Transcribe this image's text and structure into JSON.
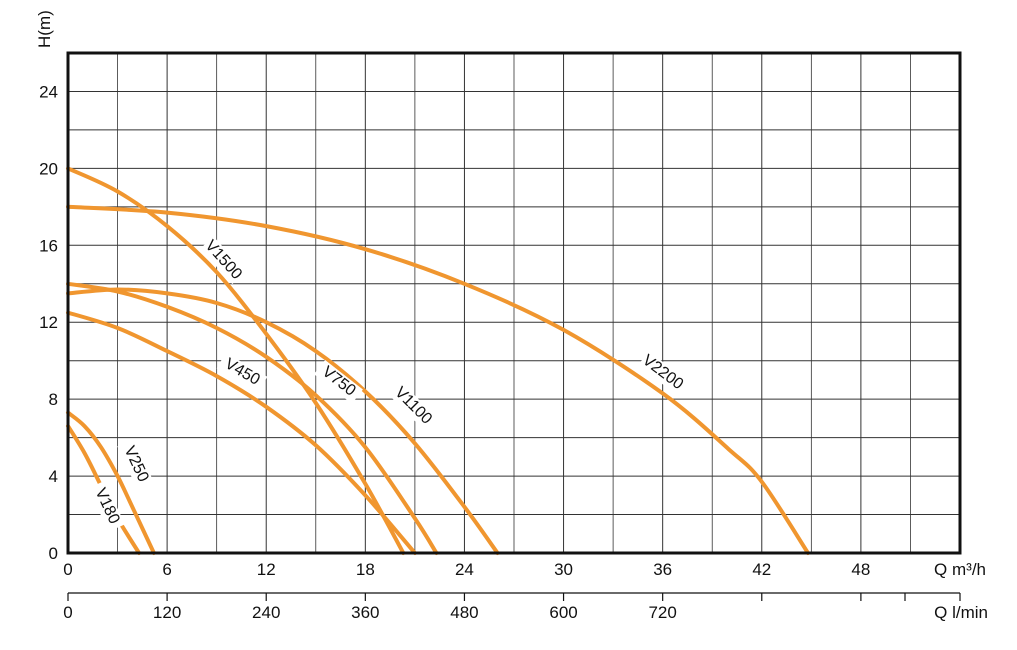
{
  "chart_data": {
    "type": "line",
    "ylabel": "H(m)",
    "xlabel": "Q m³/h",
    "x2label": "Q l/min",
    "x_ticks": [
      "0",
      "6",
      "12",
      "18",
      "24",
      "30",
      "36",
      "42",
      "48"
    ],
    "x2_ticks": [
      "0",
      "120",
      "240",
      "360",
      "480",
      "600",
      "720"
    ],
    "y_ticks": [
      "0",
      "4",
      "8",
      "12",
      "16",
      "20",
      "24"
    ],
    "xlim": [
      0,
      54
    ],
    "x2lim": [
      0,
      1080
    ],
    "ylim": [
      0,
      26
    ],
    "grid": true,
    "line_color": "#f0962f",
    "series": [
      {
        "name": "V180",
        "x": [
          0,
          1,
          2,
          3,
          4.3
        ],
        "y": [
          6.6,
          5.2,
          3.5,
          1.8,
          0
        ]
      },
      {
        "name": "V250",
        "x": [
          0,
          1,
          2,
          3,
          4,
          5.2
        ],
        "y": [
          7.3,
          6.6,
          5.5,
          4.0,
          2.2,
          0
        ]
      },
      {
        "name": "V450",
        "x": [
          0,
          3,
          6,
          9,
          12,
          15,
          18,
          21
        ],
        "y": [
          12.5,
          11.7,
          10.5,
          9.2,
          7.6,
          5.6,
          3.0,
          0
        ]
      },
      {
        "name": "V750",
        "x": [
          0,
          3,
          6,
          9,
          12,
          15,
          18,
          21,
          22.3
        ],
        "y": [
          14.0,
          13.6,
          12.8,
          11.7,
          10.2,
          8.2,
          5.5,
          1.8,
          0
        ]
      },
      {
        "name": "V1100",
        "x": [
          0,
          3,
          6,
          9,
          12,
          15,
          18,
          21,
          24,
          26
        ],
        "y": [
          13.5,
          13.7,
          13.5,
          13.0,
          12.0,
          10.5,
          8.4,
          5.7,
          2.4,
          0
        ]
      },
      {
        "name": "V1500",
        "x": [
          0,
          3,
          6,
          9,
          12,
          15,
          18,
          20.3
        ],
        "y": [
          20.0,
          18.8,
          17.0,
          14.6,
          11.4,
          7.8,
          3.6,
          0
        ]
      },
      {
        "name": "V2200",
        "x": [
          0,
          6,
          12,
          18,
          24,
          30,
          36,
          40,
          42,
          44.8
        ],
        "y": [
          18.0,
          17.7,
          17.0,
          15.8,
          14.0,
          11.6,
          8.3,
          5.4,
          3.7,
          0
        ]
      }
    ],
    "labels": [
      {
        "series": "V1500",
        "text": "V1500"
      },
      {
        "series": "V2200",
        "text": "V2200"
      },
      {
        "series": "V450",
        "text": "V450"
      },
      {
        "series": "V750",
        "text": "V750"
      },
      {
        "series": "V1100",
        "text": "V1100"
      },
      {
        "series": "V250",
        "text": "V250"
      },
      {
        "series": "V180",
        "text": "V180"
      }
    ]
  }
}
